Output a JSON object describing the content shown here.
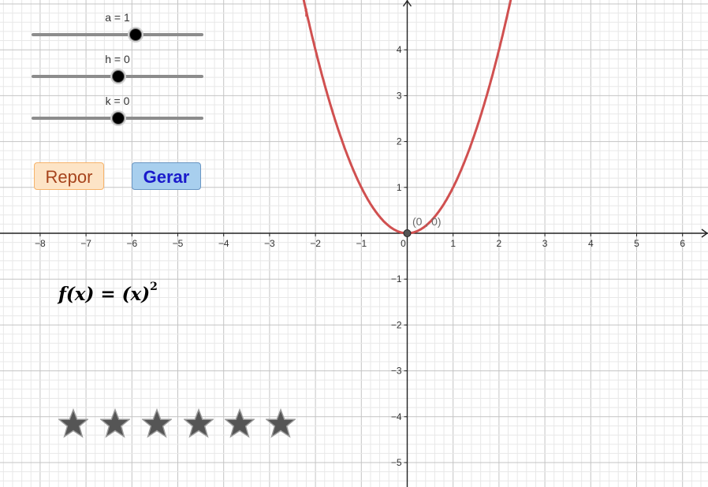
{
  "sliders": [
    {
      "label": "a = 1",
      "value": 1
    },
    {
      "label": "h = 0",
      "value": 0
    },
    {
      "label": "k = 0",
      "value": 0
    }
  ],
  "buttons": {
    "reset_label": "Repor",
    "generate_label": "Gerar"
  },
  "formula": {
    "prefix": "f(x) = (x)",
    "exponent": "2"
  },
  "graph": {
    "function_label": "f",
    "vertex_label": "(0 , 0)",
    "x_ticks": [
      "−8",
      "−7",
      "−6",
      "−5",
      "−4",
      "−3",
      "−2",
      "−1",
      "0",
      "1",
      "2",
      "3",
      "4",
      "5",
      "6"
    ],
    "y_ticks": [
      "−5",
      "−4",
      "−3",
      "−2",
      "−1",
      "1",
      "2",
      "3",
      "4"
    ],
    "x_range": [
      -8.8,
      6.6
    ],
    "y_range": [
      -5.5,
      5.1
    ],
    "curve_color": "#d05050",
    "grid": true
  },
  "stars": {
    "count": 6,
    "color": "#555555"
  }
}
